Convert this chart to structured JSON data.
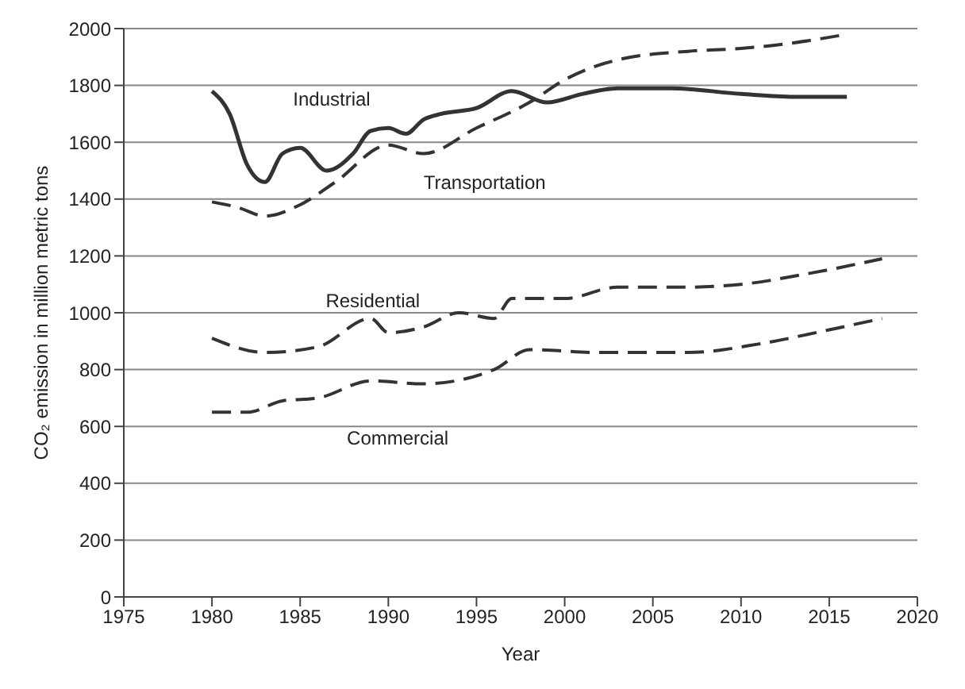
{
  "chart_data": {
    "type": "line",
    "xlabel": "Year",
    "ylabel": "CO₂ emission in million metric tons",
    "xlim": [
      1975,
      2020
    ],
    "xticks": [
      1975,
      1980,
      1985,
      1990,
      1995,
      2000,
      2005,
      2010,
      2015,
      2020
    ],
    "ylim": [
      0,
      2000
    ],
    "yticks": [
      0,
      200,
      400,
      600,
      800,
      1000,
      1200,
      1400,
      1600,
      1800,
      2000
    ],
    "grid": "y",
    "marker": "none",
    "series": [
      {
        "name": "Industrial",
        "color": "#333333",
        "line_style": "solid",
        "x": [
          1980,
          1981,
          1982,
          1983,
          1984,
          1985,
          1986.5,
          1988,
          1989,
          1990,
          1991,
          1992,
          1993,
          1995,
          1997,
          1999,
          2001,
          2003,
          2006,
          2010,
          2013,
          2016
        ],
        "values": [
          1780,
          1700,
          1520,
          1460,
          1560,
          1580,
          1500,
          1560,
          1640,
          1650,
          1630,
          1680,
          1700,
          1720,
          1780,
          1740,
          1770,
          1790,
          1790,
          1770,
          1760,
          1760
        ]
      },
      {
        "name": "Transportation",
        "color": "#333333",
        "line_style": "dashed",
        "x": [
          1980,
          1981.5,
          1983,
          1985,
          1987,
          1990,
          1992,
          1995,
          1998,
          2000,
          2003,
          2007,
          2010,
          2013,
          2016
        ],
        "values": [
          1390,
          1370,
          1340,
          1380,
          1460,
          1590,
          1560,
          1650,
          1740,
          1820,
          1890,
          1920,
          1930,
          1950,
          1980
        ]
      },
      {
        "name": "Residential",
        "color": "#333333",
        "line_style": "dashed",
        "x": [
          1980,
          1983,
          1986,
          1989,
          1990,
          1992,
          1994,
          1996,
          1997,
          2000,
          2003,
          2007,
          2010,
          2014,
          2018
        ],
        "values": [
          910,
          860,
          880,
          980,
          930,
          950,
          1000,
          980,
          1050,
          1050,
          1090,
          1090,
          1100,
          1140,
          1190
        ]
      },
      {
        "name": "Commercial",
        "color": "#333333",
        "line_style": "dashed",
        "x": [
          1980,
          1982,
          1984,
          1986,
          1989,
          1992,
          1996,
          1998,
          2002,
          2007,
          2011,
          2015,
          2018
        ],
        "values": [
          650,
          650,
          690,
          700,
          760,
          750,
          800,
          870,
          860,
          860,
          890,
          940,
          980
        ]
      }
    ]
  }
}
